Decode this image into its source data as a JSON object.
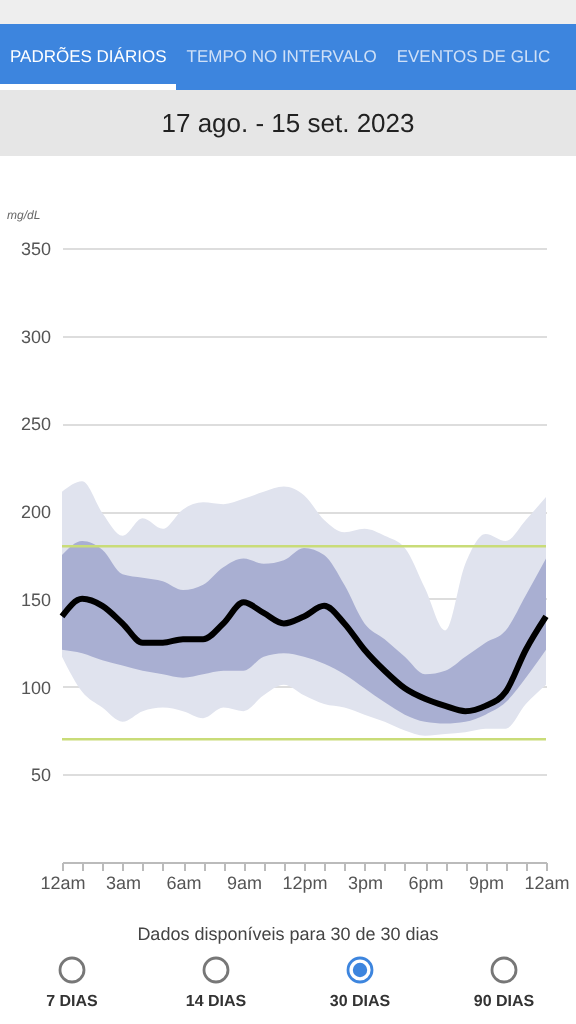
{
  "chart_data": {
    "type": "line",
    "title": "17 ago. - 15 set. 2023",
    "ylabel": "mg/dL",
    "annotations": [
      "PADRÕES DIÁRIOS",
      "TEMPO NO INTERVALO",
      "EVENTOS DE GLIC",
      "Dados disponíveis para 30 de 30 dias",
      "7 DIAS",
      "14 DIAS",
      "30 DIAS",
      "90 DIAS"
    ],
    "categories": [
      "12am",
      null,
      null,
      "3am",
      null,
      null,
      "6am",
      null,
      null,
      "9am",
      null,
      null,
      "12pm",
      null,
      null,
      "3pm",
      null,
      null,
      "6pm",
      null,
      null,
      "9pm",
      null,
      null,
      "12am"
    ],
    "series": [
      {
        "type": "area",
        "color": "#e0e3ee",
        "values": [
          null,
          null,
          null,
          null,
          null,
          null,
          null,
          null,
          null,
          null,
          null,
          null,
          null,
          null,
          null,
          null,
          null,
          null,
          null,
          null,
          null,
          null,
          null,
          null,
          null
        ],
        "lower": [
          117,
          97,
          88,
          80,
          86,
          88,
          86,
          82,
          88,
          86,
          95,
          101,
          95,
          90,
          88,
          84,
          80,
          75,
          72,
          73,
          74,
          76,
          76,
          90,
          101
        ],
        "upper": [
          211,
          217,
          199,
          186,
          196,
          190,
          201,
          205,
          204,
          207,
          211,
          214,
          209,
          195,
          188,
          190,
          186,
          179,
          156,
          132,
          170,
          187,
          183,
          195,
          208
        ]
      },
      {
        "type": "area",
        "color": "#a9afd2",
        "values": [
          null,
          null,
          null,
          null,
          null,
          null,
          null,
          null,
          null,
          null,
          null,
          null,
          null,
          null,
          null,
          null,
          null,
          null,
          null,
          null,
          null,
          null,
          null,
          null,
          null
        ],
        "lower": [
          121,
          119,
          115,
          112,
          109,
          107,
          105,
          107,
          109,
          109,
          117,
          119,
          117,
          113,
          107,
          99,
          91,
          84,
          80,
          79,
          80,
          84,
          91,
          105,
          121
        ],
        "upper": [
          175,
          183,
          178,
          164,
          162,
          160,
          155,
          158,
          168,
          173,
          170,
          172,
          179,
          175,
          158,
          136,
          127,
          117,
          107,
          109,
          117,
          125,
          132,
          152,
          173
        ]
      },
      {
        "type": "line",
        "color": "#000000",
        "values": [
          140,
          150,
          146,
          136,
          125,
          125,
          127,
          127,
          136,
          148,
          142,
          136,
          140,
          146,
          136,
          121,
          109,
          99,
          93,
          89,
          86,
          89,
          97,
          121,
          140
        ]
      }
    ],
    "ylim": [
      0,
      350
    ],
    "yticks": [
      50,
      100,
      150,
      200,
      250,
      300,
      350
    ],
    "ref_lines": [
      {
        "axis": "y",
        "value": 70,
        "color": "#c9dc78"
      },
      {
        "axis": "y",
        "value": 180,
        "color": "#c9dc78"
      }
    ],
    "grid": "y",
    "line_style": "solid",
    "marker": "none"
  }
}
